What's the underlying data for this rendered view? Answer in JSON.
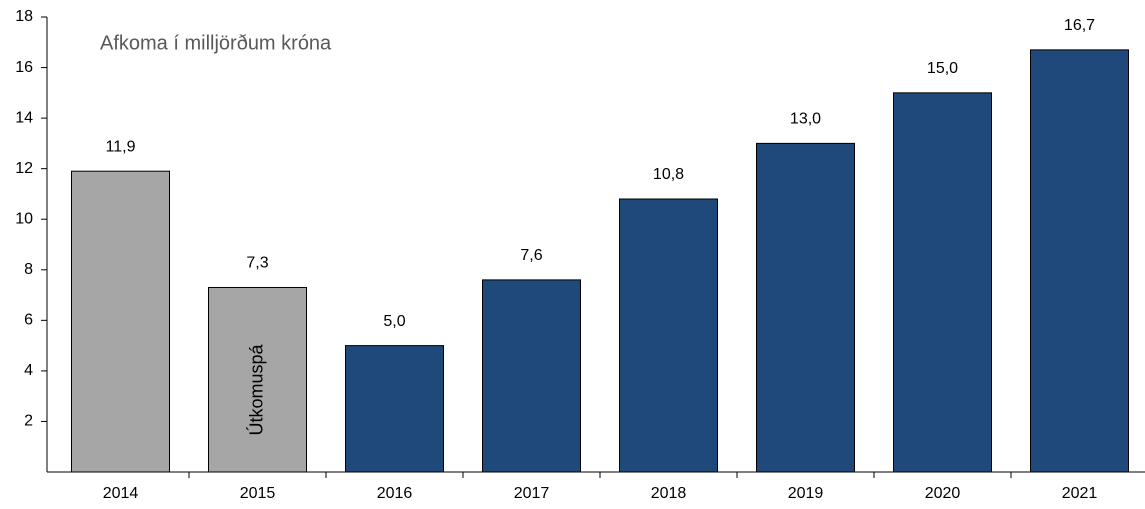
{
  "chart_data": {
    "type": "bar",
    "title": "Afkoma í milljörðum króna",
    "annotation": "Útkomuspá",
    "categories": [
      "2014",
      "2015",
      "2016",
      "2017",
      "2018",
      "2019",
      "2020",
      "2021"
    ],
    "values": [
      11.9,
      7.3,
      5.0,
      7.6,
      10.8,
      13.0,
      15.0,
      16.7
    ],
    "value_labels": [
      "11,9",
      "7,3",
      "5,0",
      "7,6",
      "10,8",
      "13,0",
      "15,0",
      "16,7"
    ],
    "colors": [
      "#a6a6a6",
      "#a6a6a6",
      "#1f487b",
      "#1f487b",
      "#1f487b",
      "#1f487b",
      "#1f487b",
      "#1f487b"
    ],
    "ylim": [
      0,
      18
    ],
    "yticks": [
      2,
      4,
      6,
      8,
      10,
      12,
      14,
      16,
      18
    ],
    "grid": false
  }
}
